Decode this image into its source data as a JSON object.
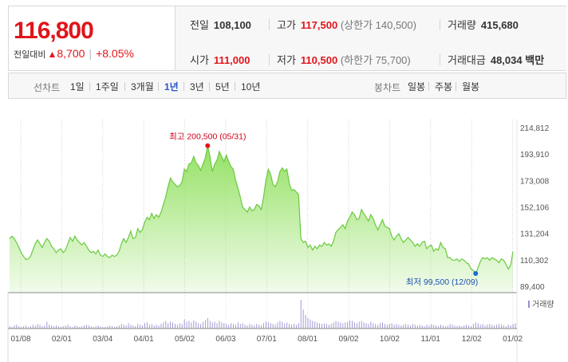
{
  "quote": {
    "price": "116,800",
    "change_label": "전일대비",
    "change_arrow": "▲",
    "change_amount": "8,700",
    "change_percent": "+8.05%",
    "prev_close_label": "전일",
    "prev_close": "108,100",
    "high_label": "고가",
    "high": "117,500",
    "upper_limit": "(상한가 140,500)",
    "volume_label": "거래량",
    "volume": "415,680",
    "open_label": "시가",
    "open": "111,000",
    "low_label": "저가",
    "low": "110,500",
    "lower_limit": "(하한가 75,700)",
    "trade_value_label": "거래대금",
    "trade_value": "48,034",
    "trade_value_unit": "백만",
    "up_color": "#e0151b",
    "down_color": "#1c52b5"
  },
  "toolbar": {
    "line_chart_label": "선차트",
    "periods": [
      "1일",
      "1주일",
      "3개월",
      "1년",
      "3년",
      "5년",
      "10년"
    ],
    "active_period": "1년",
    "candle_chart_label": "봉차트",
    "candles": [
      "일봉",
      "주봉",
      "월봉"
    ]
  },
  "chart_data": {
    "type": "area",
    "title": "",
    "xlabel": "",
    "ylabel": "",
    "y_ticks": [
      214812,
      193910,
      173008,
      152106,
      131204,
      110302,
      89400
    ],
    "y_tick_labels": [
      "214,812",
      "193,910",
      "173,008",
      "152,106",
      "131,204",
      "110,302",
      "89,400"
    ],
    "ylim": [
      89400,
      214812
    ],
    "x_tick_labels": [
      "01/08",
      "02/01",
      "03/04",
      "04/01",
      "05/02",
      "06/03",
      "07/01",
      "08/01",
      "09/02",
      "10/02",
      "11/01",
      "12/02",
      "01/02"
    ],
    "grid": "vertical dotted",
    "high_annotation": "최고 200,500 (05/31)",
    "low_annotation": "최저 99,500 (12/09)",
    "high_value": 200500,
    "low_value": 99500,
    "volume_legend": "거래량",
    "fill_color": "#8fe05c",
    "line_color": "#6ac93f",
    "volume_color": "#9a8fd0",
    "series": [
      {
        "values": [
          127000,
          129000,
          127000,
          124000,
          120000,
          116000,
          113000,
          110500,
          111000,
          113000,
          118000,
          123000,
          126000,
          123000,
          120000,
          124000,
          127000,
          125000,
          121000,
          119000,
          116000,
          118000,
          119000,
          116000,
          118000,
          123000,
          128000,
          125000,
          129000,
          126000,
          124000,
          122000,
          124000,
          121000,
          118000,
          116000,
          117000,
          115000,
          118000,
          114000,
          113000,
          115000,
          113000,
          112000,
          114000,
          113000,
          114000,
          117000,
          123000,
          127000,
          124000,
          128000,
          133000,
          127000,
          128000,
          135000,
          132000,
          134000,
          140000,
          144000,
          142000,
          147000,
          143000,
          146000,
          144000,
          148000,
          154000,
          160000,
          168000,
          175000,
          172000,
          170000,
          168000,
          169000,
          172000,
          182000,
          180000,
          186000,
          187000,
          192000,
          187000,
          185000,
          181000,
          186000,
          191000,
          200500,
          192000,
          180000,
          186000,
          189000,
          196000,
          192000,
          188000,
          193000,
          188000,
          184000,
          182000,
          173000,
          167000,
          160000,
          152000,
          150000,
          148000,
          152000,
          149000,
          150000,
          154000,
          153000,
          150000,
          160000,
          173000,
          182000,
          178000,
          170000,
          168000,
          172000,
          180000,
          183000,
          180000,
          182000,
          171000,
          165000,
          166000,
          164000,
          162000,
          127000,
          124000,
          125000,
          120000,
          122000,
          118000,
          121000,
          119000,
          122000,
          121000,
          124000,
          122000,
          123000,
          121000,
          125000,
          132000,
          134000,
          136000,
          138000,
          135000,
          141000,
          144000,
          148000,
          146000,
          142000,
          143000,
          150000,
          147000,
          144000,
          141000,
          146000,
          143000,
          138000,
          134000,
          138000,
          142000,
          137000,
          136000,
          135000,
          129000,
          126000,
          129000,
          131000,
          127000,
          124000,
          126000,
          128000,
          126000,
          124000,
          121000,
          123000,
          121000,
          124000,
          125000,
          119000,
          121000,
          122000,
          117000,
          119000,
          118000,
          124000,
          120000,
          119000,
          112000,
          112000,
          110000,
          110000,
          111000,
          109000,
          111000,
          110000,
          108000,
          107000,
          103000,
          102000,
          99500,
          104000,
          109000,
          112000,
          111000,
          112000,
          110000,
          112000,
          111000,
          110000,
          108000,
          111000,
          110000,
          107000,
          103000,
          106000,
          116800
        ]
      }
    ],
    "volume": [
      3,
      2,
      4,
      5,
      3,
      2,
      3,
      4,
      2,
      3,
      5,
      4,
      6,
      5,
      3,
      4,
      9,
      5,
      4,
      3,
      4,
      3,
      2,
      3,
      4,
      5,
      3,
      2,
      4,
      3,
      2,
      3,
      4,
      5,
      4,
      3,
      2,
      3,
      4,
      3,
      2,
      2,
      3,
      4,
      3,
      2,
      3,
      4,
      6,
      5,
      4,
      7,
      5,
      4,
      3,
      6,
      5,
      4,
      7,
      8,
      5,
      6,
      4,
      5,
      4,
      6,
      8,
      10,
      7,
      9,
      8,
      6,
      5,
      7,
      6,
      12,
      9,
      10,
      8,
      11,
      9,
      7,
      6,
      9,
      11,
      14,
      10,
      8,
      9,
      7,
      10,
      8,
      7,
      6,
      5,
      7,
      6,
      5,
      8,
      6,
      7,
      5,
      4,
      6,
      5,
      4,
      6,
      5,
      4,
      7,
      9,
      8,
      7,
      6,
      5,
      8,
      10,
      9,
      7,
      8,
      6,
      5,
      6,
      5,
      7,
      38,
      25,
      18,
      14,
      12,
      10,
      9,
      8,
      7,
      6,
      7,
      6,
      5,
      6,
      8,
      10,
      9,
      8,
      7,
      8,
      9,
      11,
      10,
      8,
      7,
      9,
      10,
      8,
      7,
      6,
      9,
      7,
      6,
      5,
      7,
      8,
      6,
      5,
      6,
      7,
      5,
      6,
      5,
      4,
      5,
      6,
      5,
      4,
      6,
      5,
      4,
      5,
      4,
      3,
      5,
      4,
      6,
      5,
      4,
      3,
      5,
      4,
      3,
      4,
      6,
      5,
      4,
      3,
      4,
      3,
      4,
      5,
      4,
      3,
      6,
      8,
      7,
      5,
      6,
      4,
      5,
      6,
      5,
      4,
      5,
      6,
      5,
      4,
      3,
      5,
      4,
      6,
      7
    ]
  }
}
